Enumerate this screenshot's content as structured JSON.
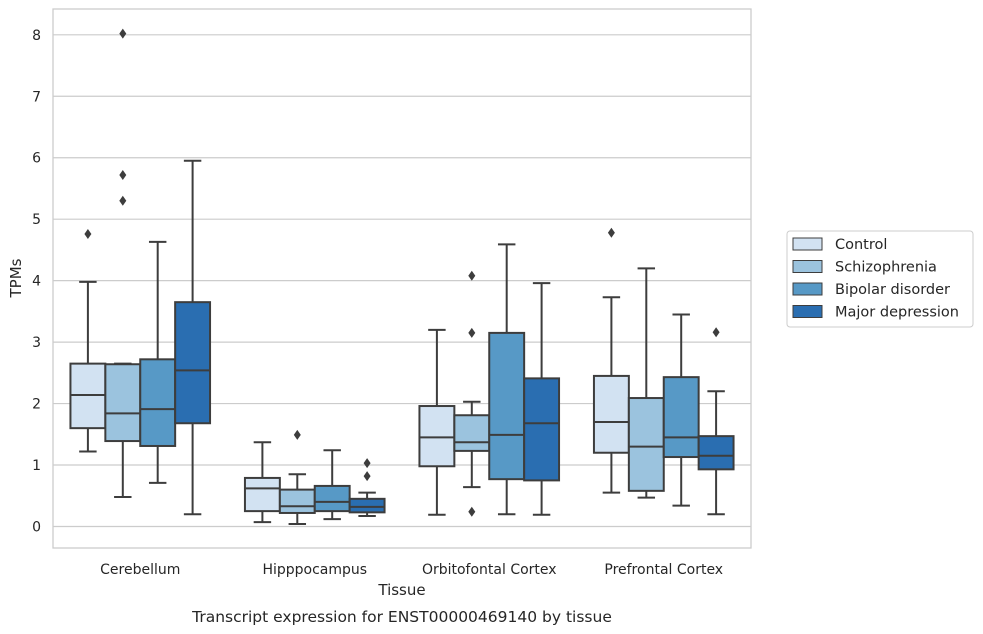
{
  "caption": "Transcript expression for ENST00000469140 by tissue",
  "chart_data": {
    "type": "boxplot",
    "xlabel": "Tissue",
    "ylabel": "TPMs",
    "ylim": [
      -0.35,
      8.42
    ],
    "yticks": [
      "0",
      "1",
      "2",
      "3",
      "4",
      "5",
      "6",
      "7",
      "8"
    ],
    "grid": "horizontal",
    "legend_position": "right",
    "categories": [
      "Cerebellum",
      "Hipppocampus",
      "Orbitofontal Cortex",
      "Prefrontal Cortex"
    ],
    "series": [
      {
        "name": "Control",
        "color": "#d2e2f2",
        "boxes": [
          {
            "whisker_low": 1.22,
            "q1": 1.6,
            "median": 2.14,
            "q3": 2.65,
            "whisker_high": 3.98,
            "outliers": [
              4.76
            ]
          },
          {
            "whisker_low": 0.07,
            "q1": 0.25,
            "median": 0.62,
            "q3": 0.79,
            "whisker_high": 1.37,
            "outliers": []
          },
          {
            "whisker_low": 0.19,
            "q1": 0.98,
            "median": 1.45,
            "q3": 1.96,
            "whisker_high": 3.2,
            "outliers": []
          },
          {
            "whisker_low": 0.55,
            "q1": 1.2,
            "median": 1.7,
            "q3": 2.45,
            "whisker_high": 3.73,
            "outliers": [
              4.78
            ]
          }
        ]
      },
      {
        "name": "Schizophrenia",
        "color": "#9bc3de",
        "boxes": [
          {
            "whisker_low": 0.48,
            "q1": 1.39,
            "median": 1.84,
            "q3": 2.64,
            "whisker_high": 2.65,
            "outliers": [
              5.3,
              5.72,
              8.02
            ]
          },
          {
            "whisker_low": 0.04,
            "q1": 0.22,
            "median": 0.33,
            "q3": 0.6,
            "whisker_high": 0.85,
            "outliers": [
              1.49
            ]
          },
          {
            "whisker_low": 0.64,
            "q1": 1.23,
            "median": 1.37,
            "q3": 1.81,
            "whisker_high": 2.03,
            "outliers": [
              0.24,
              3.15,
              4.08
            ]
          },
          {
            "whisker_low": 0.47,
            "q1": 0.58,
            "median": 1.3,
            "q3": 2.09,
            "whisker_high": 4.2,
            "outliers": []
          }
        ]
      },
      {
        "name": "Bipolar disorder",
        "color": "#5799c6",
        "boxes": [
          {
            "whisker_low": 0.71,
            "q1": 1.31,
            "median": 1.91,
            "q3": 2.72,
            "whisker_high": 4.63,
            "outliers": []
          },
          {
            "whisker_low": 0.12,
            "q1": 0.25,
            "median": 0.4,
            "q3": 0.66,
            "whisker_high": 1.24,
            "outliers": []
          },
          {
            "whisker_low": 0.2,
            "q1": 0.77,
            "median": 1.49,
            "q3": 3.15,
            "whisker_high": 4.59,
            "outliers": []
          },
          {
            "whisker_low": 0.34,
            "q1": 1.13,
            "median": 1.45,
            "q3": 2.43,
            "whisker_high": 3.45,
            "outliers": []
          }
        ]
      },
      {
        "name": "Major depression",
        "color": "#2a6eb1",
        "boxes": [
          {
            "whisker_low": 0.2,
            "q1": 1.68,
            "median": 2.54,
            "q3": 3.65,
            "whisker_high": 5.95,
            "outliers": []
          },
          {
            "whisker_low": 0.17,
            "q1": 0.23,
            "median": 0.32,
            "q3": 0.45,
            "whisker_high": 0.55,
            "outliers": [
              0.82,
              1.03
            ]
          },
          {
            "whisker_low": 0.19,
            "q1": 0.75,
            "median": 1.68,
            "q3": 2.41,
            "whisker_high": 3.96,
            "outliers": []
          },
          {
            "whisker_low": 0.2,
            "q1": 0.93,
            "median": 1.15,
            "q3": 1.47,
            "whisker_high": 2.2,
            "outliers": [
              3.16
            ]
          }
        ]
      }
    ]
  }
}
